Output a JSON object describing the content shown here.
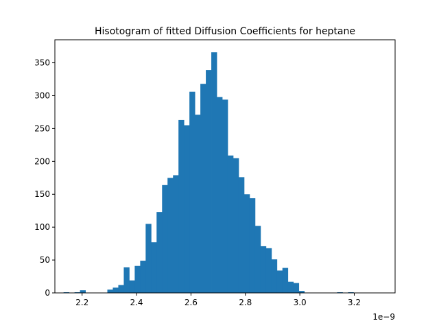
{
  "chart_data": {
    "type": "bar",
    "title": "Hisotogram of fitted Diffusion Coefficients for heptane",
    "xlabel": "",
    "ylabel": "",
    "x_offset_label": "1e−9",
    "xlim": [
      2.1,
      3.35
    ],
    "ylim": [
      0,
      385
    ],
    "xticks": [
      {
        "value": 2.2,
        "label": "2.2"
      },
      {
        "value": 2.4,
        "label": "2.4"
      },
      {
        "value": 2.6,
        "label": "2.6"
      },
      {
        "value": 2.8,
        "label": "2.8"
      },
      {
        "value": 3.0,
        "label": "3.0"
      },
      {
        "value": 3.2,
        "label": "3.2"
      }
    ],
    "yticks": [
      {
        "value": 0,
        "label": "0"
      },
      {
        "value": 50,
        "label": "50"
      },
      {
        "value": 100,
        "label": "100"
      },
      {
        "value": 150,
        "label": "150"
      },
      {
        "value": 200,
        "label": "200"
      },
      {
        "value": 250,
        "label": "250"
      },
      {
        "value": 300,
        "label": "300"
      },
      {
        "value": 350,
        "label": "350"
      }
    ],
    "bin_start": 2.132,
    "bin_width": 0.0201,
    "values": [
      1,
      0,
      1,
      4,
      0,
      0,
      0,
      0,
      5,
      8,
      12,
      39,
      19,
      41,
      49,
      105,
      77,
      123,
      164,
      175,
      179,
      263,
      255,
      306,
      271,
      318,
      339,
      366,
      298,
      294,
      209,
      205,
      176,
      150,
      144,
      102,
      71,
      68,
      51,
      34,
      38,
      17,
      15,
      3,
      0,
      0,
      0,
      0,
      0,
      0,
      1,
      0,
      1
    ],
    "bar_color": "#1f77b4",
    "grid": false,
    "legend": "none"
  }
}
